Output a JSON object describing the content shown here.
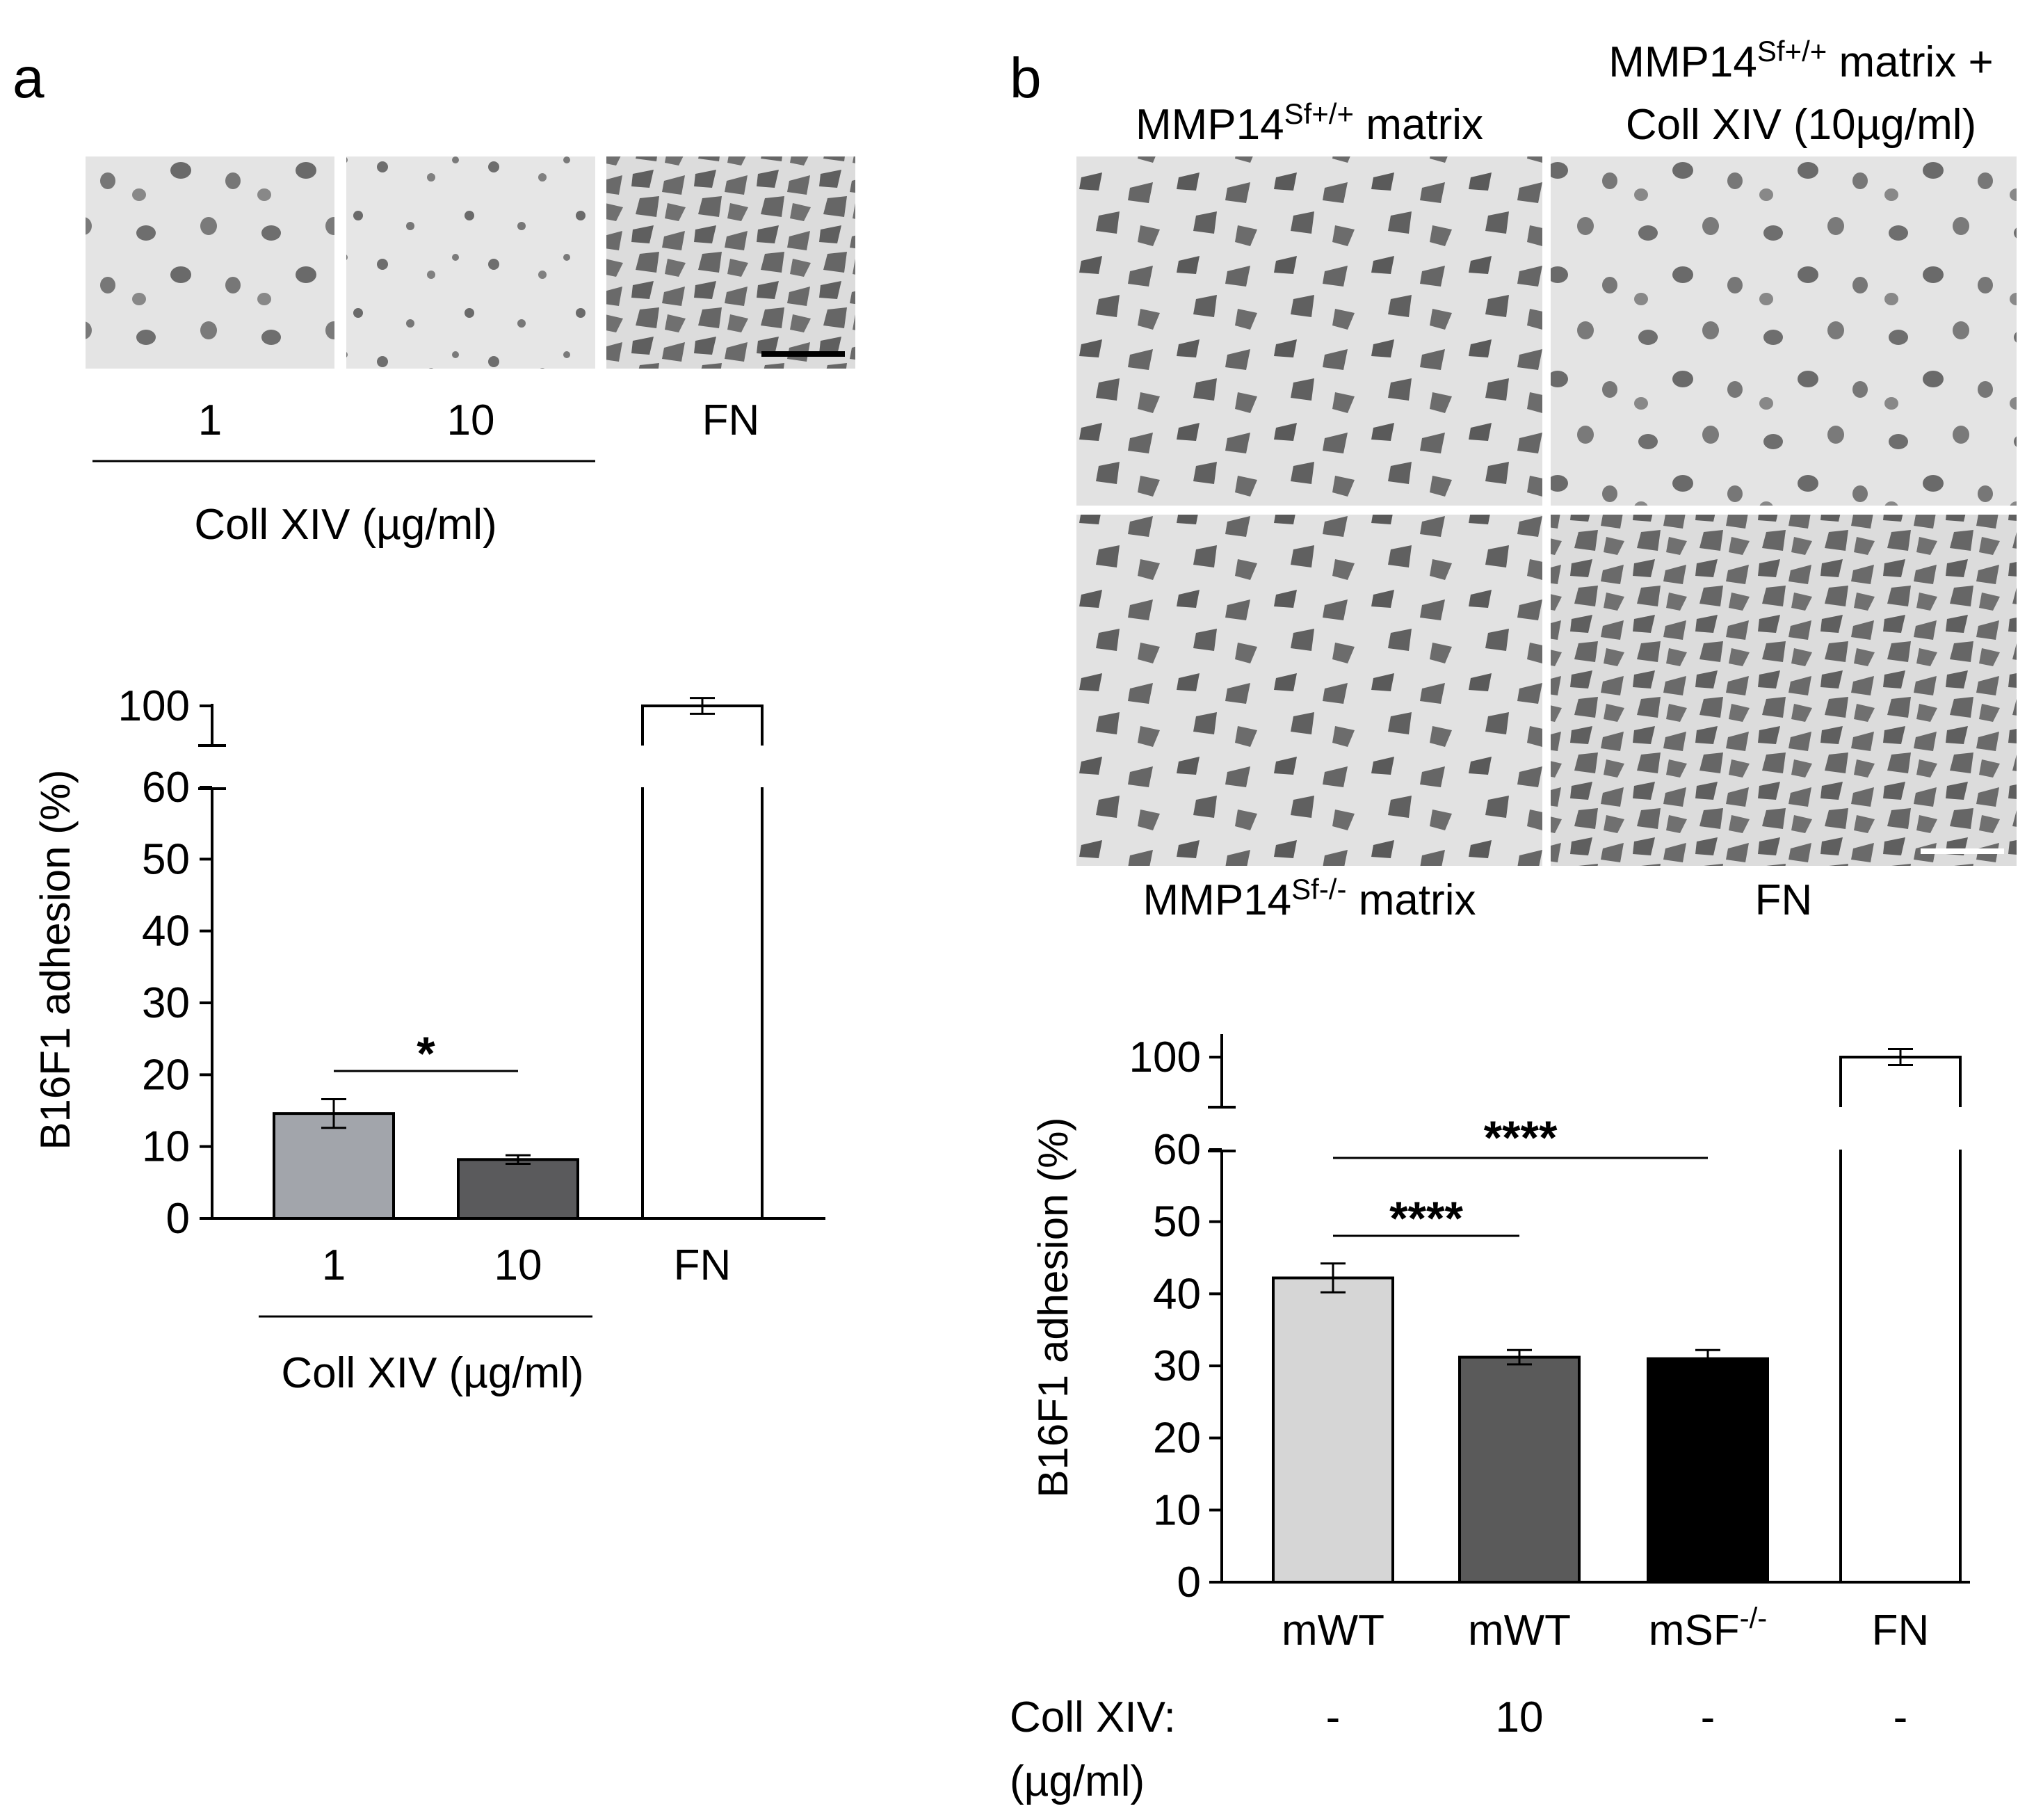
{
  "panel_a": {
    "letter": "a",
    "micrographs": [
      {
        "label": "1",
        "name": "collxiv-1-micrograph"
      },
      {
        "label": "10",
        "name": "collxiv-10-micrograph"
      },
      {
        "label": "FN",
        "name": "fn-micrograph"
      }
    ],
    "group_label": "Coll XIV (µg/ml)"
  },
  "panel_b": {
    "letter": "b",
    "micrographs": [
      {
        "title_main": "MMP14",
        "title_sup": "Sf+/+",
        "title_rest": " matrix"
      },
      {
        "title_line1_main": "MMP14",
        "title_line1_sup": "Sf+/+",
        "title_line1_rest": " matrix +",
        "title_line2": "Coll XIV (10µg/ml)"
      },
      {
        "bottom_main": "MMP14",
        "bottom_sup": "Sf-/-",
        "bottom_rest": " matrix"
      },
      {
        "bottom_label": "FN"
      }
    ]
  },
  "chart_data": [
    {
      "type": "bar",
      "panel": "a",
      "ylabel": "B16F1 adhesion (%)",
      "axis_break": [
        60,
        100
      ],
      "yticks": [
        0,
        10,
        20,
        30,
        40,
        50,
        60,
        100
      ],
      "categories": [
        "1",
        "10",
        "FN"
      ],
      "values": [
        14.6,
        8.2,
        100
      ],
      "errors": [
        2.0,
        0.6,
        2.0
      ],
      "bar_colors": [
        "#a2a5ab",
        "#5a5a5c",
        "#ffffff"
      ],
      "group_label": "Coll XIV (µg/ml)",
      "significance": [
        {
          "from": 0,
          "to": 1,
          "label": "*"
        }
      ]
    },
    {
      "type": "bar",
      "panel": "b",
      "ylabel": "B16F1 adhesion (%)",
      "axis_break": [
        60,
        100
      ],
      "yticks": [
        0,
        10,
        20,
        30,
        40,
        50,
        60,
        100
      ],
      "categories": [
        {
          "main": "mWT",
          "sup": ""
        },
        {
          "main": "mWT",
          "sup": ""
        },
        {
          "main": "mSF",
          "sup": "-/-"
        },
        {
          "main": "FN",
          "sup": ""
        }
      ],
      "values": [
        42.2,
        31.2,
        31.0,
        100
      ],
      "errors": [
        2.0,
        1.0,
        1.2,
        1.6
      ],
      "bar_colors": [
        "#d6d6d6",
        "#5a5a5a",
        "#000000",
        "#ffffff"
      ],
      "coll_row_label_line1": "Coll XIV:",
      "coll_row_label_line2": "(µg/ml)",
      "coll_row_values": [
        "-",
        "10",
        "-",
        "-"
      ],
      "significance": [
        {
          "from": 0,
          "to": 2,
          "label": "****"
        },
        {
          "from": 0,
          "to": 1,
          "label": "****"
        }
      ]
    }
  ]
}
